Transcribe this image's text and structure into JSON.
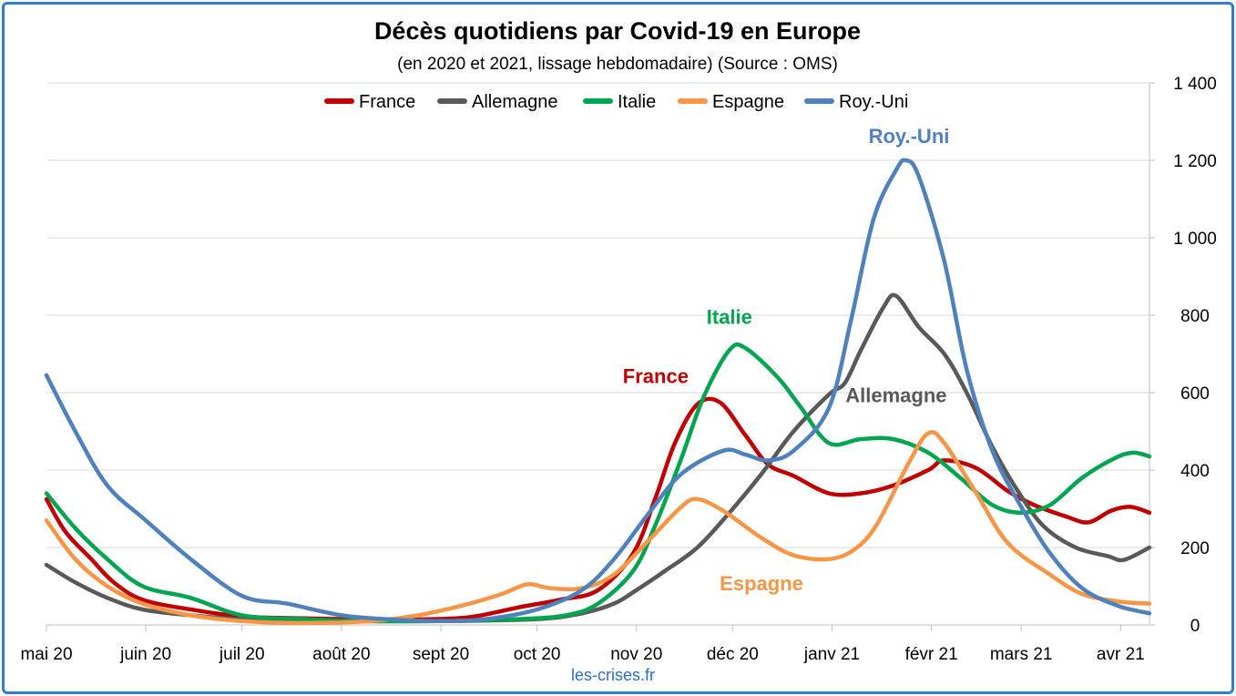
{
  "chart_data": {
    "type": "line",
    "title": "Décès quotidiens par Covid-19 en Europe",
    "subtitle": "(en 2020 et 2021, lissage hebdomadaire) (Source : OMS)",
    "source_note": "les-crises.fr",
    "x_start": "2020-05-01",
    "x_end": "2021-04-10",
    "x_ticks": [
      {
        "date": "2020-05-01",
        "label": "mai 20"
      },
      {
        "date": "2020-06-01",
        "label": "juin 20"
      },
      {
        "date": "2020-07-01",
        "label": "juil 20"
      },
      {
        "date": "2020-08-01",
        "label": "août 20"
      },
      {
        "date": "2020-09-01",
        "label": "sept 20"
      },
      {
        "date": "2020-10-01",
        "label": "oct 20"
      },
      {
        "date": "2020-11-01",
        "label": "nov 20"
      },
      {
        "date": "2020-12-01",
        "label": "déc 20"
      },
      {
        "date": "2021-01-01",
        "label": "janv 21"
      },
      {
        "date": "2021-02-01",
        "label": "févr 21"
      },
      {
        "date": "2021-03-01",
        "label": "mars 21"
      },
      {
        "date": "2021-04-01",
        "label": "avr 21"
      }
    ],
    "ylim": [
      0,
      1400
    ],
    "y_ticks": [
      {
        "value": 0,
        "label": "0"
      },
      {
        "value": 200,
        "label": "200"
      },
      {
        "value": 400,
        "label": "400"
      },
      {
        "value": 600,
        "label": "600"
      },
      {
        "value": 800,
        "label": "800"
      },
      {
        "value": 1000,
        "label": "1 000"
      },
      {
        "value": 1200,
        "label": "1 200"
      },
      {
        "value": 1400,
        "label": "1 400"
      }
    ],
    "y_axis_side": "right",
    "grid": "horizontal",
    "legend_position": "top",
    "series": [
      {
        "name": "France",
        "color": "#c00000",
        "annotation": "France",
        "annotation_at": {
          "date": "2020-11-07",
          "value": 625
        },
        "points": [
          [
            "2020-05-01",
            325
          ],
          [
            "2020-05-07",
            240
          ],
          [
            "2020-05-15",
            170
          ],
          [
            "2020-05-22",
            110
          ],
          [
            "2020-05-31",
            65
          ],
          [
            "2020-06-15",
            40
          ],
          [
            "2020-07-01",
            22
          ],
          [
            "2020-07-20",
            17
          ],
          [
            "2020-08-10",
            14
          ],
          [
            "2020-08-25",
            14
          ],
          [
            "2020-09-10",
            20
          ],
          [
            "2020-09-25",
            45
          ],
          [
            "2020-10-08",
            65
          ],
          [
            "2020-10-20",
            90
          ],
          [
            "2020-10-31",
            185
          ],
          [
            "2020-11-07",
            330
          ],
          [
            "2020-11-13",
            470
          ],
          [
            "2020-11-20",
            570
          ],
          [
            "2020-11-27",
            575
          ],
          [
            "2020-12-05",
            490
          ],
          [
            "2020-12-12",
            415
          ],
          [
            "2020-12-20",
            385
          ],
          [
            "2020-12-31",
            340
          ],
          [
            "2021-01-10",
            340
          ],
          [
            "2021-01-20",
            360
          ],
          [
            "2021-01-31",
            400
          ],
          [
            "2021-02-05",
            425
          ],
          [
            "2021-02-15",
            405
          ],
          [
            "2021-02-25",
            345
          ],
          [
            "2021-03-05",
            310
          ],
          [
            "2021-03-15",
            280
          ],
          [
            "2021-03-22",
            265
          ],
          [
            "2021-03-29",
            295
          ],
          [
            "2021-04-04",
            305
          ],
          [
            "2021-04-10",
            290
          ]
        ]
      },
      {
        "name": "Allemagne",
        "color": "#595959",
        "annotation": "Allemagne",
        "annotation_at": {
          "date": "2021-01-21",
          "value": 575
        },
        "points": [
          [
            "2020-05-01",
            155
          ],
          [
            "2020-05-10",
            110
          ],
          [
            "2020-05-20",
            70
          ],
          [
            "2020-05-31",
            40
          ],
          [
            "2020-06-15",
            25
          ],
          [
            "2020-07-01",
            15
          ],
          [
            "2020-08-01",
            10
          ],
          [
            "2020-09-01",
            10
          ],
          [
            "2020-10-01",
            15
          ],
          [
            "2020-10-15",
            30
          ],
          [
            "2020-10-25",
            55
          ],
          [
            "2020-11-01",
            90
          ],
          [
            "2020-11-10",
            140
          ],
          [
            "2020-11-20",
            200
          ],
          [
            "2020-11-30",
            290
          ],
          [
            "2020-12-10",
            390
          ],
          [
            "2020-12-20",
            500
          ],
          [
            "2020-12-31",
            595
          ],
          [
            "2021-01-05",
            625
          ],
          [
            "2021-01-10",
            710
          ],
          [
            "2021-01-17",
            820
          ],
          [
            "2021-01-21",
            850
          ],
          [
            "2021-01-28",
            770
          ],
          [
            "2021-02-05",
            700
          ],
          [
            "2021-02-12",
            600
          ],
          [
            "2021-02-20",
            460
          ],
          [
            "2021-02-28",
            345
          ],
          [
            "2021-03-08",
            255
          ],
          [
            "2021-03-18",
            200
          ],
          [
            "2021-03-28",
            178
          ],
          [
            "2021-04-02",
            168
          ],
          [
            "2021-04-10",
            200
          ]
        ]
      },
      {
        "name": "Italie",
        "color": "#00a550",
        "annotation": "Italie",
        "annotation_at": {
          "date": "2020-11-30",
          "value": 778
        },
        "points": [
          [
            "2020-05-01",
            340
          ],
          [
            "2020-05-10",
            250
          ],
          [
            "2020-05-20",
            170
          ],
          [
            "2020-05-31",
            100
          ],
          [
            "2020-06-15",
            70
          ],
          [
            "2020-07-01",
            25
          ],
          [
            "2020-07-20",
            15
          ],
          [
            "2020-08-10",
            10
          ],
          [
            "2020-09-01",
            10
          ],
          [
            "2020-09-25",
            15
          ],
          [
            "2020-10-10",
            25
          ],
          [
            "2020-10-20",
            55
          ],
          [
            "2020-10-31",
            140
          ],
          [
            "2020-11-07",
            260
          ],
          [
            "2020-11-15",
            430
          ],
          [
            "2020-11-22",
            590
          ],
          [
            "2020-11-30",
            710
          ],
          [
            "2020-12-05",
            715
          ],
          [
            "2020-12-15",
            640
          ],
          [
            "2020-12-22",
            565
          ],
          [
            "2020-12-31",
            470
          ],
          [
            "2021-01-10",
            480
          ],
          [
            "2021-01-20",
            480
          ],
          [
            "2021-01-31",
            445
          ],
          [
            "2021-02-10",
            380
          ],
          [
            "2021-02-20",
            310
          ],
          [
            "2021-03-01",
            290
          ],
          [
            "2021-03-10",
            310
          ],
          [
            "2021-03-20",
            380
          ],
          [
            "2021-03-30",
            430
          ],
          [
            "2021-04-05",
            445
          ],
          [
            "2021-04-10",
            435
          ]
        ]
      },
      {
        "name": "Espagne",
        "color": "#f79646",
        "annotation": "Espagne",
        "annotation_at": {
          "date": "2020-12-10",
          "value": 90
        },
        "points": [
          [
            "2020-05-01",
            270
          ],
          [
            "2020-05-10",
            170
          ],
          [
            "2020-05-20",
            100
          ],
          [
            "2020-05-31",
            55
          ],
          [
            "2020-06-15",
            25
          ],
          [
            "2020-07-01",
            10
          ],
          [
            "2020-07-20",
            5
          ],
          [
            "2020-08-10",
            10
          ],
          [
            "2020-08-25",
            25
          ],
          [
            "2020-09-10",
            55
          ],
          [
            "2020-09-20",
            80
          ],
          [
            "2020-09-28",
            105
          ],
          [
            "2020-10-05",
            95
          ],
          [
            "2020-10-15",
            95
          ],
          [
            "2020-10-25",
            130
          ],
          [
            "2020-11-05",
            220
          ],
          [
            "2020-11-15",
            305
          ],
          [
            "2020-11-20",
            325
          ],
          [
            "2020-11-28",
            295
          ],
          [
            "2020-12-10",
            225
          ],
          [
            "2020-12-20",
            180
          ],
          [
            "2020-12-31",
            170
          ],
          [
            "2021-01-08",
            195
          ],
          [
            "2021-01-15",
            260
          ],
          [
            "2021-01-25",
            420
          ],
          [
            "2021-01-31",
            495
          ],
          [
            "2021-02-05",
            470
          ],
          [
            "2021-02-15",
            340
          ],
          [
            "2021-02-25",
            210
          ],
          [
            "2021-03-10",
            130
          ],
          [
            "2021-03-20",
            80
          ],
          [
            "2021-04-01",
            60
          ],
          [
            "2021-04-10",
            55
          ]
        ]
      },
      {
        "name": "Roy.-Uni",
        "color": "#4f81bd",
        "annotation": "Roy.-Uni",
        "annotation_at": {
          "date": "2021-01-25",
          "value": 1245
        },
        "points": [
          [
            "2020-05-01",
            645
          ],
          [
            "2020-05-10",
            500
          ],
          [
            "2020-05-20",
            360
          ],
          [
            "2020-06-01",
            270
          ],
          [
            "2020-06-15",
            170
          ],
          [
            "2020-07-01",
            75
          ],
          [
            "2020-07-15",
            55
          ],
          [
            "2020-08-01",
            25
          ],
          [
            "2020-08-15",
            15
          ],
          [
            "2020-09-01",
            10
          ],
          [
            "2020-09-15",
            15
          ],
          [
            "2020-10-01",
            40
          ],
          [
            "2020-10-15",
            90
          ],
          [
            "2020-10-25",
            170
          ],
          [
            "2020-11-05",
            290
          ],
          [
            "2020-11-15",
            390
          ],
          [
            "2020-11-28",
            450
          ],
          [
            "2020-12-05",
            440
          ],
          [
            "2020-12-12",
            425
          ],
          [
            "2020-12-20",
            450
          ],
          [
            "2020-12-31",
            560
          ],
          [
            "2021-01-07",
            790
          ],
          [
            "2021-01-14",
            1050
          ],
          [
            "2021-01-21",
            1175
          ],
          [
            "2021-01-24",
            1200
          ],
          [
            "2021-01-28",
            1160
          ],
          [
            "2021-02-05",
            940
          ],
          [
            "2021-02-12",
            660
          ],
          [
            "2021-02-20",
            450
          ],
          [
            "2021-03-01",
            305
          ],
          [
            "2021-03-10",
            185
          ],
          [
            "2021-03-20",
            95
          ],
          [
            "2021-03-31",
            50
          ],
          [
            "2021-04-10",
            30
          ]
        ]
      }
    ]
  }
}
